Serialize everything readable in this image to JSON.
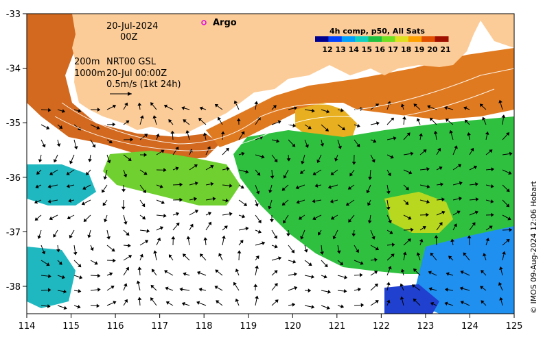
{
  "map": {
    "date_line1": "20-Jul-2024",
    "date_line2": "00Z",
    "depth_line1": "200m",
    "depth_line2": "1000m",
    "product_line1": "NRT00 GSL",
    "product_line2": "20-Jul 00:00Z",
    "vector_scale_label": "0.5m/s (1kt 24h)",
    "legend_argo_label": "Argo",
    "argo_marker_color": "#e000e0",
    "land_color": "#fccc98",
    "credit": "© IMOS 09-Aug-2024 12:06 Hobart"
  },
  "colorbar": {
    "title": "4h comp, p50, All Sats",
    "ticks": [
      "12",
      "13",
      "14",
      "15",
      "16",
      "17",
      "18",
      "19",
      "20",
      "21"
    ],
    "colors": [
      "#00008f",
      "#0040ff",
      "#00a0ff",
      "#10d0c0",
      "#20c040",
      "#70e020",
      "#e0e020",
      "#ffa000",
      "#e05000",
      "#a01000"
    ]
  },
  "axes": {
    "x_ticks": [
      "114",
      "115",
      "116",
      "117",
      "118",
      "119",
      "120",
      "121",
      "122",
      "123",
      "124",
      "125"
    ],
    "y_ticks": [
      "-33",
      "-34",
      "-35",
      "-36",
      "-37",
      "-38"
    ]
  },
  "regions": [
    {
      "name": "sst-patch-orange-west",
      "color": "#d2691e"
    },
    {
      "name": "sst-patch-orange-shelf",
      "color": "#e07a20"
    },
    {
      "name": "sst-patch-yellow-shelf",
      "color": "#e8b020"
    },
    {
      "name": "sst-patch-green-east",
      "color": "#30c040"
    },
    {
      "name": "sst-patch-lightgreen-mid",
      "color": "#70d030"
    },
    {
      "name": "sst-patch-yellowgreen-eddy",
      "color": "#b8d820"
    },
    {
      "name": "sst-patch-cyan-west",
      "color": "#20b8c0"
    },
    {
      "name": "sst-patch-blue-southeast",
      "color": "#2090f0"
    },
    {
      "name": "sst-patch-darkblue-southeast",
      "color": "#2040d0"
    }
  ]
}
